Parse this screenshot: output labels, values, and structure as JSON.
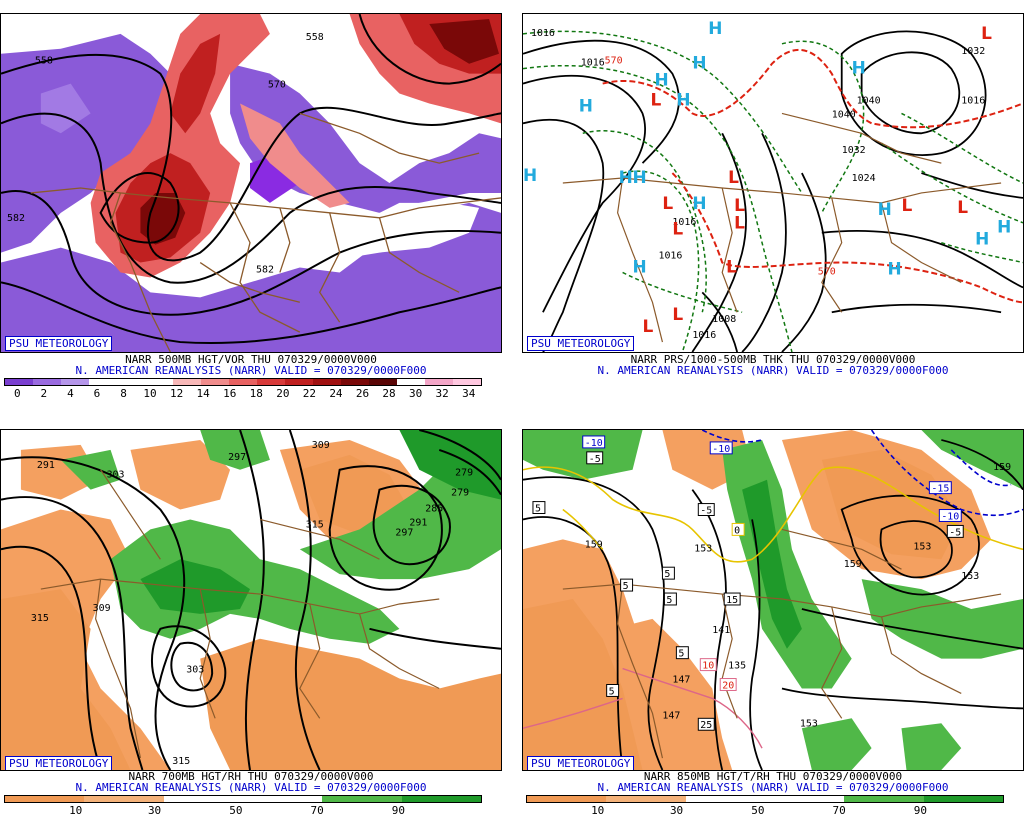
{
  "badge": "PSU METEOROLOGY",
  "caption_line2": "N. AMERICAN REANALYSIS (NARR) VALID = 070329/0000F000",
  "panels": {
    "p1": {
      "caption": "NARR 500MB HGT/VOR THU 070329/0000V000",
      "colorbar_ticks": [
        "0",
        "2",
        "4",
        "6",
        "8",
        "10",
        "12",
        "14",
        "16",
        "18",
        "20",
        "22",
        "24",
        "26",
        "28",
        "30",
        "32",
        "34"
      ],
      "colorbar_colors": [
        "#7a3fd0",
        "#9a6be0",
        "#b596ea",
        "#ffffff",
        "#ffffff",
        "#ffffff",
        "#f8b8b8",
        "#f08c8c",
        "#e86262",
        "#d83a3a",
        "#c02020",
        "#a01010",
        "#7a0808",
        "#5a0505",
        "#ffffff",
        "#f4a6c8",
        "#ffc8e0"
      ],
      "contour_labels": [
        "558",
        "558",
        "570",
        "582",
        "582"
      ]
    },
    "p2": {
      "caption": "NARR PRS/1000-500MB THK THU 070329/0000V000",
      "contour_labels": [
        "1016",
        "1016",
        "1032",
        "1040",
        "1040",
        "1016",
        "1032",
        "1024",
        "1016",
        "1016",
        "1008",
        "1016",
        "570",
        "570"
      ],
      "highs": 14,
      "lows": 11
    },
    "p3": {
      "caption": "NARR 700MB HGT/RH THU 070329/0000V000",
      "colorbar_ticks": [
        "10",
        "30",
        "50",
        "70",
        "90"
      ],
      "colorbar_colors": [
        "#f09a55",
        "#f4b27a",
        "#ffffff",
        "#ffffff",
        "#50b848",
        "#1f9a2a"
      ],
      "contour_labels": [
        "291",
        "303",
        "297",
        "309",
        "279",
        "279",
        "285",
        "291",
        "297",
        "315",
        "315",
        "309",
        "303",
        "315",
        "315"
      ]
    },
    "p4": {
      "caption": "NARR 850MB HGT/T/RH THU 070329/0000V000",
      "colorbar_ticks": [
        "10",
        "30",
        "50",
        "70",
        "90"
      ],
      "colorbar_colors": [
        "#f09a55",
        "#f4b27a",
        "#ffffff",
        "#ffffff",
        "#50b848",
        "#1f9a2a"
      ],
      "contour_labels": [
        "159",
        "153",
        "159",
        "153",
        "147",
        "141",
        "153",
        "135",
        "147",
        "153",
        "159"
      ],
      "temp_labels": [
        "-10",
        "-5",
        "-10",
        "5",
        "-5",
        "0",
        "-15",
        "-10",
        "-5",
        "5",
        "5",
        "5",
        "15",
        "10",
        "5",
        "20",
        "25",
        "5"
      ]
    }
  },
  "colors": {
    "border": "#8b5a2b",
    "contour": "#000000",
    "high": "#22aadd",
    "low": "#dd2211",
    "green_contour": "#117711"
  }
}
